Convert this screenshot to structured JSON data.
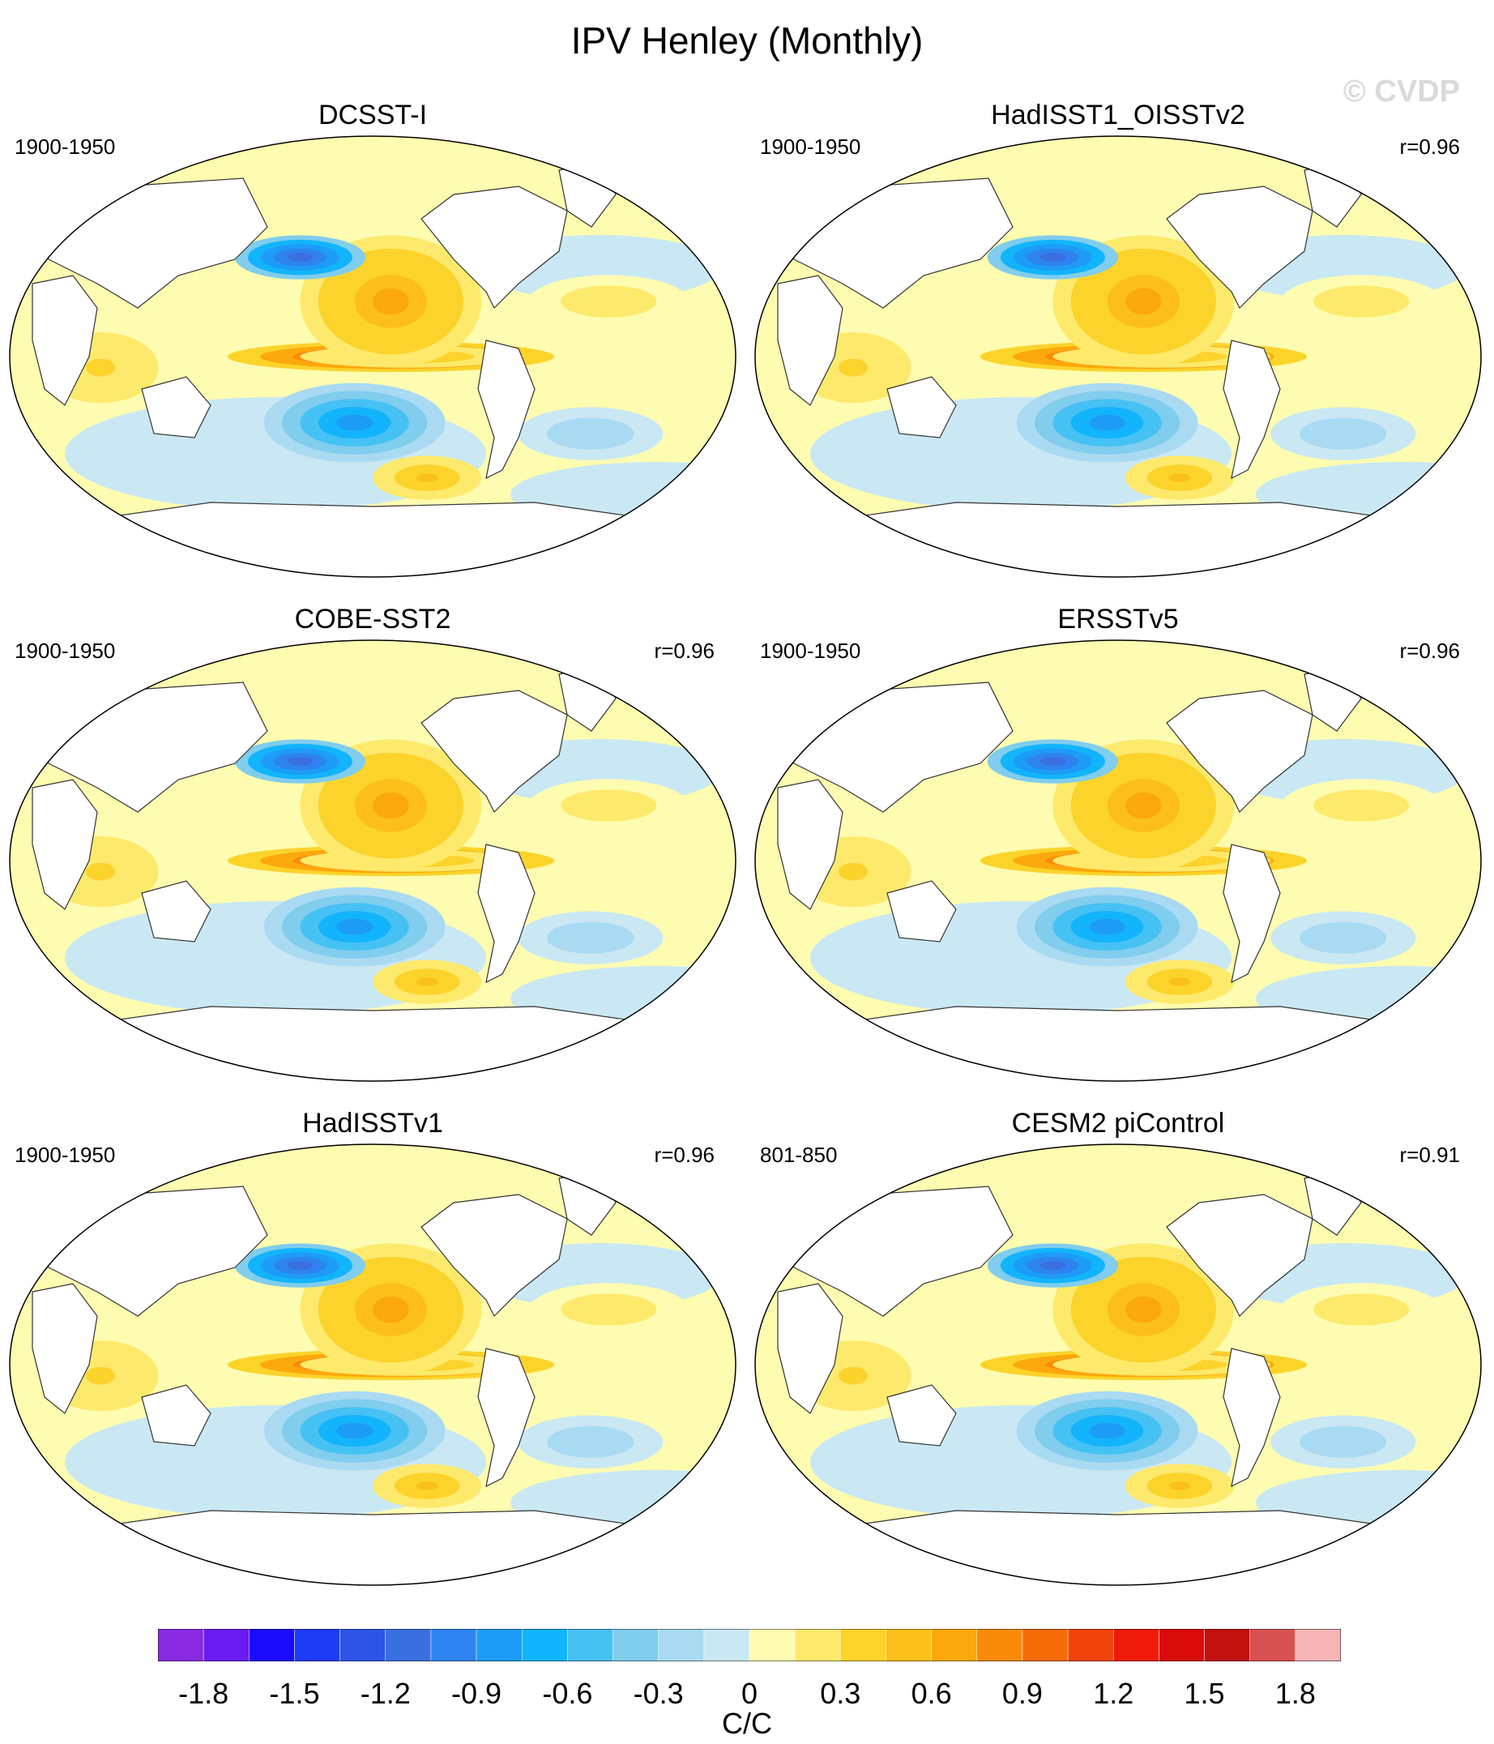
{
  "figure": {
    "title": "IPV Henley (Monthly)",
    "watermark": "© CVDP"
  },
  "chart_data": {
    "type": "heatmap",
    "projection": "robinson-like world map, Pacific centered",
    "panels": [
      {
        "title": "DCSST-I",
        "period": "1900-1950",
        "correlation": ""
      },
      {
        "title": "HadISST1_OISSTv2",
        "period": "1900-1950",
        "correlation": "r=0.96"
      },
      {
        "title": "COBE-SST2",
        "period": "1900-1950",
        "correlation": "r=0.96"
      },
      {
        "title": "ERSSTv5",
        "period": "1900-1950",
        "correlation": "r=0.96"
      },
      {
        "title": "HadISSTv1",
        "period": "1900-1950",
        "correlation": "r=0.96"
      },
      {
        "title": "CESM2 piControl",
        "period": "801-850",
        "correlation": "r=0.91"
      }
    ],
    "colorbar": {
      "units": "C/C",
      "levels": [
        -1.95,
        -1.8,
        -1.65,
        -1.5,
        -1.35,
        -1.2,
        -1.05,
        -0.9,
        -0.75,
        -0.6,
        -0.45,
        -0.3,
        -0.15,
        0,
        0.15,
        0.3,
        0.45,
        0.6,
        0.75,
        0.9,
        1.05,
        1.2,
        1.35,
        1.5,
        1.65,
        1.8,
        1.95
      ],
      "tick_labels": [
        "-1.8",
        "-1.5",
        "-1.2",
        "-0.9",
        "-0.6",
        "-0.3",
        "0",
        "0.3",
        "0.6",
        "0.9",
        "1.2",
        "1.5",
        "1.8"
      ],
      "tick_values": [
        -1.8,
        -1.5,
        -1.2,
        -0.9,
        -0.6,
        -0.3,
        0,
        0.3,
        0.6,
        0.9,
        1.2,
        1.5,
        1.8
      ],
      "colors": [
        "#8a2be2",
        "#6a1cf0",
        "#1a0aff",
        "#1f3cf5",
        "#2c55e6",
        "#3a6fe0",
        "#2f83f0",
        "#1d9cf7",
        "#12b4fb",
        "#46c1f4",
        "#80cdee",
        "#a9daf2",
        "#c9e8f4",
        "#fefcb0",
        "#fde96b",
        "#fcd32a",
        "#fcbf1a",
        "#fba80c",
        "#f98b0a",
        "#f66b08",
        "#f1440b",
        "#ee1a0a",
        "#d90b0b",
        "#c2100f",
        "#d95050",
        "#f7b5b8"
      ],
      "value_range": [
        -1.95,
        1.95
      ]
    },
    "pattern_description_tags": [
      "warm tropical Pacific",
      "cool North Pacific",
      "cool southwest Pacific"
    ]
  }
}
